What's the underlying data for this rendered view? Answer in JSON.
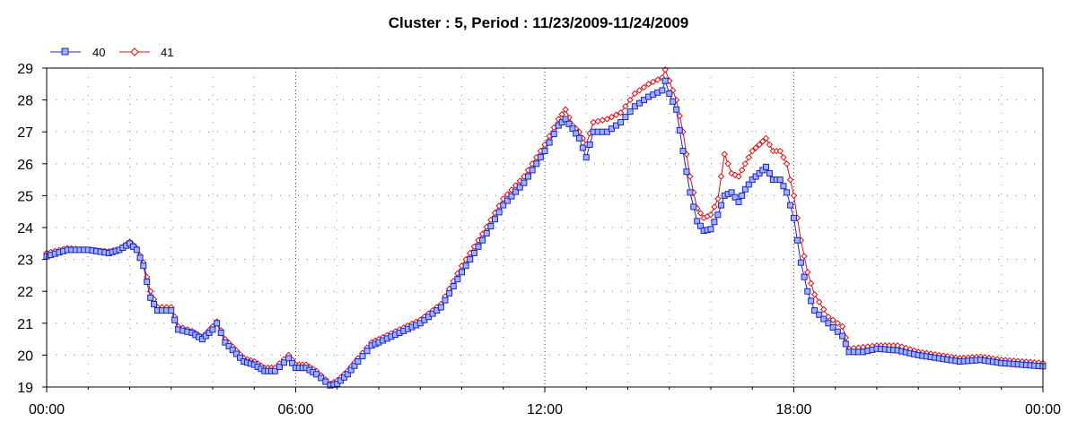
{
  "chart_data": {
    "type": "line",
    "title": "Cluster : 5, Period : 11/23/2009-11/24/2009",
    "xlabel": "",
    "ylabel": "",
    "x_tick_labels": [
      "00:00",
      "06:00",
      "12:00",
      "18:00",
      "00:00"
    ],
    "x_range_hours": [
      0,
      24
    ],
    "ylim": [
      19,
      29
    ],
    "y_ticks": [
      19,
      20,
      21,
      22,
      23,
      24,
      25,
      26,
      27,
      28,
      29
    ],
    "grid": true,
    "legend_position": "top-left",
    "series": [
      {
        "name": "40",
        "color": "#2020c8",
        "fill": "#9db4ff",
        "marker": "square",
        "points": [
          [
            0.0,
            23.1
          ],
          [
            0.5,
            23.3
          ],
          [
            1.0,
            23.3
          ],
          [
            1.5,
            23.2
          ],
          [
            1.75,
            23.3
          ],
          [
            2.0,
            23.5
          ],
          [
            2.17,
            23.3
          ],
          [
            2.33,
            22.8
          ],
          [
            2.5,
            21.8
          ],
          [
            2.67,
            21.4
          ],
          [
            3.0,
            21.4
          ],
          [
            3.17,
            20.8
          ],
          [
            3.5,
            20.7
          ],
          [
            3.75,
            20.5
          ],
          [
            4.0,
            20.8
          ],
          [
            4.1,
            21.0
          ],
          [
            4.3,
            20.4
          ],
          [
            4.75,
            19.8
          ],
          [
            5.0,
            19.7
          ],
          [
            5.25,
            19.5
          ],
          [
            5.5,
            19.5
          ],
          [
            5.83,
            19.9
          ],
          [
            6.0,
            19.6
          ],
          [
            6.25,
            19.6
          ],
          [
            6.5,
            19.4
          ],
          [
            6.83,
            19.05
          ],
          [
            7.0,
            19.1
          ],
          [
            7.25,
            19.4
          ],
          [
            7.5,
            19.8
          ],
          [
            7.83,
            20.3
          ],
          [
            8.0,
            20.4
          ],
          [
            8.5,
            20.7
          ],
          [
            9.0,
            21.0
          ],
          [
            9.5,
            21.5
          ],
          [
            10.0,
            22.6
          ],
          [
            10.5,
            23.6
          ],
          [
            11.0,
            24.7
          ],
          [
            11.5,
            25.4
          ],
          [
            12.0,
            26.4
          ],
          [
            12.33,
            27.2
          ],
          [
            12.5,
            27.4
          ],
          [
            12.67,
            27.1
          ],
          [
            12.83,
            26.8
          ],
          [
            13.0,
            26.2
          ],
          [
            13.17,
            27.0
          ],
          [
            13.5,
            27.0
          ],
          [
            13.83,
            27.3
          ],
          [
            14.17,
            27.8
          ],
          [
            14.5,
            28.1
          ],
          [
            14.83,
            28.3
          ],
          [
            14.9,
            28.6
          ],
          [
            15.0,
            28.2
          ],
          [
            15.17,
            27.7
          ],
          [
            15.33,
            26.4
          ],
          [
            15.5,
            25.1
          ],
          [
            15.67,
            24.2
          ],
          [
            15.83,
            23.9
          ],
          [
            16.0,
            23.95
          ],
          [
            16.17,
            24.4
          ],
          [
            16.33,
            25.0
          ],
          [
            16.5,
            25.1
          ],
          [
            16.67,
            24.8
          ],
          [
            16.83,
            25.2
          ],
          [
            17.0,
            25.5
          ],
          [
            17.17,
            25.7
          ],
          [
            17.33,
            25.9
          ],
          [
            17.5,
            25.5
          ],
          [
            17.67,
            25.5
          ],
          [
            17.83,
            25.1
          ],
          [
            18.0,
            24.3
          ],
          [
            18.17,
            22.9
          ],
          [
            18.33,
            22.0
          ],
          [
            18.5,
            21.4
          ],
          [
            18.83,
            21.0
          ],
          [
            19.17,
            20.6
          ],
          [
            19.33,
            20.1
          ],
          [
            19.67,
            20.1
          ],
          [
            20.0,
            20.2
          ],
          [
            20.5,
            20.15
          ],
          [
            21.0,
            20.0
          ],
          [
            21.5,
            19.9
          ],
          [
            22.0,
            19.8
          ],
          [
            22.5,
            19.85
          ],
          [
            23.0,
            19.75
          ],
          [
            23.5,
            19.7
          ],
          [
            24.0,
            19.65
          ]
        ]
      },
      {
        "name": "41",
        "color": "#e01010",
        "fill": "#ffffff",
        "marker": "diamond",
        "points": [
          [
            0.0,
            23.2
          ],
          [
            0.5,
            23.35
          ],
          [
            1.0,
            23.3
          ],
          [
            1.5,
            23.25
          ],
          [
            1.75,
            23.3
          ],
          [
            2.0,
            23.55
          ],
          [
            2.17,
            23.35
          ],
          [
            2.33,
            22.9
          ],
          [
            2.5,
            22.0
          ],
          [
            2.67,
            21.5
          ],
          [
            3.0,
            21.5
          ],
          [
            3.17,
            20.9
          ],
          [
            3.5,
            20.75
          ],
          [
            3.75,
            20.55
          ],
          [
            4.0,
            20.9
          ],
          [
            4.1,
            21.05
          ],
          [
            4.3,
            20.5
          ],
          [
            4.75,
            19.9
          ],
          [
            5.0,
            19.8
          ],
          [
            5.25,
            19.6
          ],
          [
            5.5,
            19.6
          ],
          [
            5.83,
            20.0
          ],
          [
            6.0,
            19.7
          ],
          [
            6.25,
            19.7
          ],
          [
            6.5,
            19.5
          ],
          [
            6.83,
            19.1
          ],
          [
            7.0,
            19.2
          ],
          [
            7.25,
            19.5
          ],
          [
            7.5,
            19.9
          ],
          [
            7.83,
            20.4
          ],
          [
            8.0,
            20.5
          ],
          [
            8.5,
            20.8
          ],
          [
            9.0,
            21.1
          ],
          [
            9.5,
            21.6
          ],
          [
            10.0,
            22.8
          ],
          [
            10.5,
            23.8
          ],
          [
            11.0,
            24.9
          ],
          [
            11.5,
            25.6
          ],
          [
            12.0,
            26.6
          ],
          [
            12.33,
            27.4
          ],
          [
            12.5,
            27.7
          ],
          [
            12.67,
            27.2
          ],
          [
            12.83,
            27.0
          ],
          [
            13.0,
            26.6
          ],
          [
            13.17,
            27.3
          ],
          [
            13.5,
            27.4
          ],
          [
            13.83,
            27.6
          ],
          [
            14.17,
            28.2
          ],
          [
            14.5,
            28.5
          ],
          [
            14.83,
            28.7
          ],
          [
            14.9,
            28.95
          ],
          [
            15.0,
            28.6
          ],
          [
            15.17,
            28.0
          ],
          [
            15.33,
            27.0
          ],
          [
            15.5,
            25.6
          ],
          [
            15.67,
            24.6
          ],
          [
            15.83,
            24.3
          ],
          [
            16.0,
            24.4
          ],
          [
            16.17,
            24.9
          ],
          [
            16.33,
            26.3
          ],
          [
            16.5,
            25.7
          ],
          [
            16.67,
            25.6
          ],
          [
            16.83,
            26.0
          ],
          [
            17.0,
            26.4
          ],
          [
            17.17,
            26.6
          ],
          [
            17.33,
            26.8
          ],
          [
            17.5,
            26.4
          ],
          [
            17.67,
            26.4
          ],
          [
            17.83,
            26.0
          ],
          [
            18.0,
            25.0
          ],
          [
            18.17,
            23.6
          ],
          [
            18.33,
            22.6
          ],
          [
            18.5,
            21.9
          ],
          [
            18.83,
            21.2
          ],
          [
            19.17,
            20.9
          ],
          [
            19.33,
            20.2
          ],
          [
            19.67,
            20.25
          ],
          [
            20.0,
            20.3
          ],
          [
            20.5,
            20.3
          ],
          [
            21.0,
            20.1
          ],
          [
            21.5,
            20.0
          ],
          [
            22.0,
            19.9
          ],
          [
            22.5,
            19.95
          ],
          [
            23.0,
            19.85
          ],
          [
            23.5,
            19.8
          ],
          [
            24.0,
            19.75
          ]
        ]
      }
    ]
  }
}
